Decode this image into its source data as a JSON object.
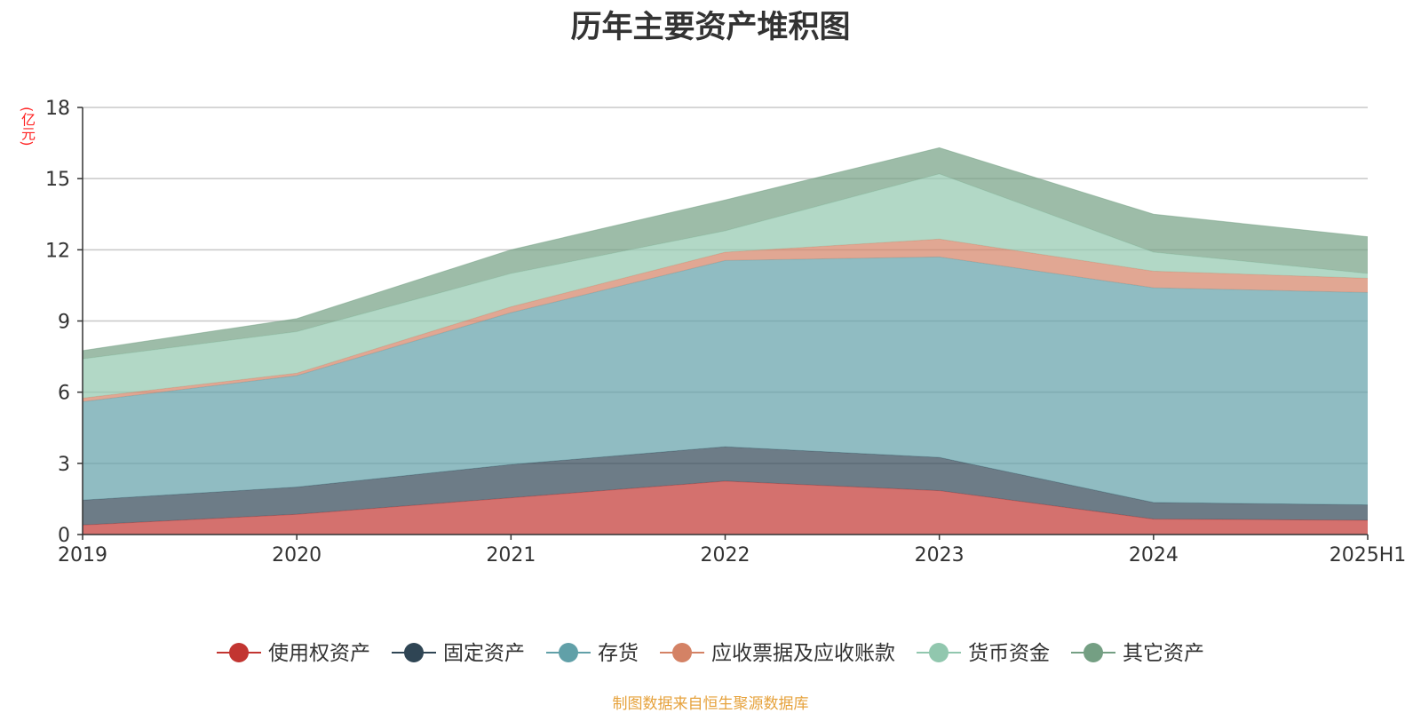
{
  "title": "历年主要资产堆积图",
  "source_note": "制图数据来自恒生聚源数据库",
  "chart_data": {
    "type": "area",
    "stacked": true,
    "title": "历年主要资产堆积图",
    "ylabel": "(亿元)",
    "xlabel": "",
    "categories": [
      "2019",
      "2020",
      "2021",
      "2022",
      "2023",
      "2024",
      "2025H1"
    ],
    "ylim": [
      0,
      18
    ],
    "yticks": [
      "0",
      "3",
      "6",
      "9",
      "12",
      "15",
      "18"
    ],
    "grid": true,
    "legend_position": "bottom",
    "series": [
      {
        "name": "使用权资产",
        "color": "#c23531",
        "values": [
          0.4,
          0.85,
          1.55,
          2.25,
          1.85,
          0.65,
          0.6
        ]
      },
      {
        "name": "固定资产",
        "color": "#2f4554",
        "values": [
          1.05,
          1.15,
          1.4,
          1.45,
          1.4,
          0.7,
          0.65
        ]
      },
      {
        "name": "存货",
        "color": "#61a0a8",
        "values": [
          4.15,
          4.7,
          6.4,
          7.85,
          8.45,
          9.05,
          8.95
        ]
      },
      {
        "name": "应收票据及应收账款",
        "color": "#d48265",
        "values": [
          0.15,
          0.1,
          0.25,
          0.35,
          0.75,
          0.7,
          0.6
        ]
      },
      {
        "name": "货币资金",
        "color": "#91c7ae",
        "values": [
          1.65,
          1.75,
          1.4,
          0.9,
          2.75,
          0.8,
          0.2
        ]
      },
      {
        "name": "其它资产",
        "color": "#749f83",
        "values": [
          0.35,
          0.55,
          1.0,
          1.3,
          1.1,
          1.6,
          1.55
        ]
      }
    ]
  }
}
